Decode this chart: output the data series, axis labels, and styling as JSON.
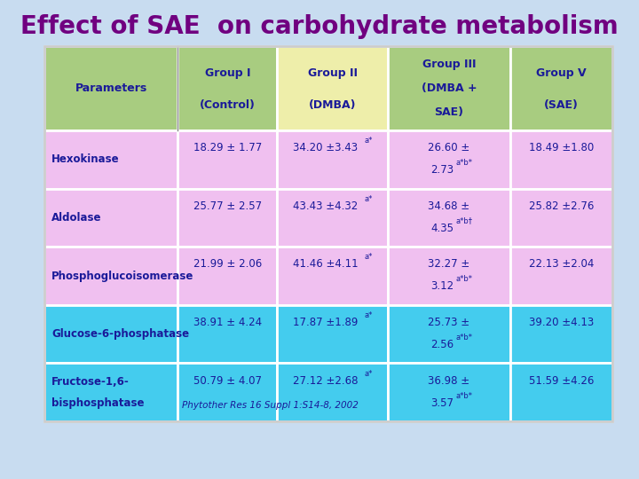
{
  "title": "Effect of SAE  on carbohydrate metabolism",
  "title_color": "#700080",
  "bg_color": "#C8DCF0",
  "col_headers": [
    [
      "Parameters",
      ""
    ],
    [
      "Group I",
      "(Control)"
    ],
    [
      "Group II",
      "(DMBA)"
    ],
    [
      "Group III",
      "(DMBA +\nSAE)"
    ],
    [
      "Group V",
      "(SAE)"
    ]
  ],
  "header_colors": [
    "#A8CC80",
    "#A8CC80",
    "#EEEEAA",
    "#A8CC80",
    "#A8CC80"
  ],
  "rows": [
    {
      "param": "Hexokinase",
      "c1": "18.29 ± 1.77",
      "c2_main": "34.20 ±3.43",
      "c2_sup": "a*",
      "c3_line1": "26.60 ±",
      "c3_line2": "2.73",
      "c3_sup": "a*b*",
      "c4": "18.49 ±1.80",
      "color": "#F0C0F0"
    },
    {
      "param": "Aldolase",
      "c1": "25.77 ± 2.57",
      "c2_main": "43.43 ±4.32",
      "c2_sup": "a*",
      "c3_line1": "34.68 ±",
      "c3_line2": "4.35",
      "c3_sup": "a*b†",
      "c4": "25.82 ±2.76",
      "color": "#F0C0F0"
    },
    {
      "param": "Phosphoglucoisomerase",
      "c1": "21.99 ± 2.06",
      "c2_main": "41.46 ±4.11",
      "c2_sup": "a*",
      "c3_line1": "32.27 ±",
      "c3_line2": "3.12",
      "c3_sup": "a*b*",
      "c4": "22.13 ±2.04",
      "color": "#F0C0F0"
    },
    {
      "param": "Glucose-6-phosphatase",
      "c1": "38.91 ± 4.24",
      "c2_main": "17.87 ±1.89",
      "c2_sup": "a*",
      "c3_line1": "25.73 ±",
      "c3_line2": "2.56",
      "c3_sup": "a*b*",
      "c4": "39.20 ±4.13",
      "color": "#44CCEE"
    },
    {
      "param": "Fructose-1,6-\nbisphosphatase",
      "c1": "50.79 ± 4.07",
      "c2_main": "27.12 ±2.68",
      "c2_sup": "a*",
      "c3_line1": "36.98 ±",
      "c3_line2": "3.57",
      "c3_sup": "a*b*",
      "c4": "51.59 ±4.26",
      "color": "#44CCEE"
    }
  ],
  "footnote": "Phytother Res 16 Suppl 1:S14-8, 2002",
  "text_color": "#1A1A99"
}
